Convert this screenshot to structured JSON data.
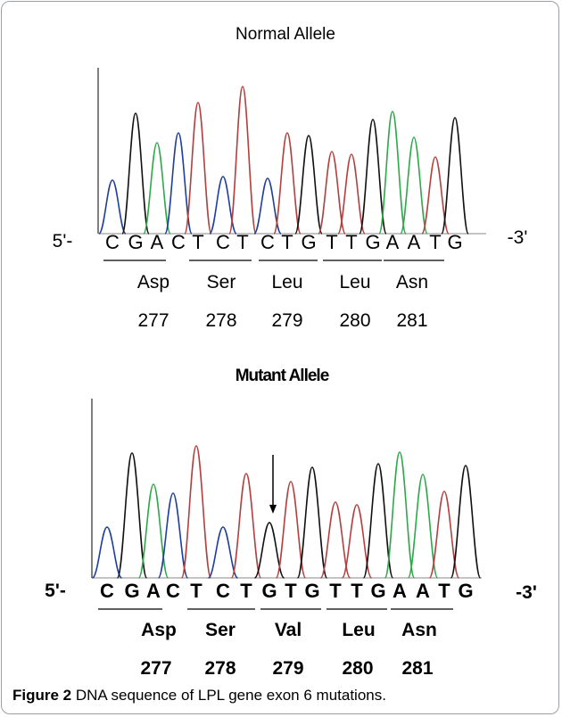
{
  "panels": [
    {
      "title": "Normal Allele",
      "prime5": "5'-",
      "prime3": "-3'",
      "bases": [
        "C",
        "G",
        "A",
        "C",
        "T",
        "C",
        "T",
        "C",
        "T",
        "G",
        "T",
        "T",
        "G",
        "A",
        "A",
        "T",
        "G"
      ],
      "codons": [
        {
          "aa": "Asp",
          "pos": "277"
        },
        {
          "aa": "Ser",
          "pos": "278"
        },
        {
          "aa": "Leu",
          "pos": "279"
        },
        {
          "aa": "Leu",
          "pos": "280"
        },
        {
          "aa": "Asn",
          "pos": "281"
        }
      ]
    },
    {
      "title": "Mutant Allele",
      "prime5": "5'-",
      "prime3": "-3'",
      "bases": [
        "C",
        "G",
        "A",
        "C",
        "T",
        "C",
        "T",
        "G",
        "T",
        "G",
        "T",
        "T",
        "G",
        "A",
        "A",
        "T",
        "G"
      ],
      "codons": [
        {
          "aa": "Asp",
          "pos": "277"
        },
        {
          "aa": "Ser",
          "pos": "278"
        },
        {
          "aa": "Val",
          "pos": "279"
        },
        {
          "aa": "Leu",
          "pos": "280"
        },
        {
          "aa": "Asn",
          "pos": "281"
        }
      ]
    }
  ],
  "caption": {
    "label": "Figure 2",
    "text": "DNA sequence of LPL gene exon 6 mutations."
  },
  "colors": {
    "C": "#1f3f9a",
    "G": "#111111",
    "A": "#2fa84a",
    "T": "#b2403f"
  }
}
